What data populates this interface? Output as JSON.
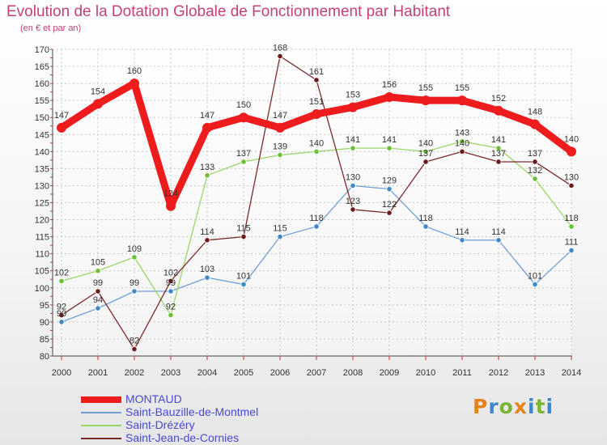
{
  "header": {
    "title": "Evolution de la Dotation Globale de Fonctionnement par Habitant",
    "subtitle": "(en € et par an)"
  },
  "logo": {
    "text": "Proxiti",
    "letters": [
      "P",
      "r",
      "o",
      "x",
      "i",
      "t",
      "i"
    ],
    "colors": [
      "#e8821c",
      "#3f88c8",
      "#7ab631",
      "#e8821c",
      "#3f88c8",
      "#7ab631",
      "#3f88c8"
    ]
  },
  "chart_data": {
    "type": "line",
    "title": "Evolution de la Dotation Globale de Fonctionnement par Habitant",
    "subtitle": "(en € et par an)",
    "xlabel": "",
    "ylabel": "",
    "ylim": [
      80,
      170
    ],
    "yticks": [
      80,
      85,
      90,
      95,
      100,
      105,
      110,
      115,
      120,
      125,
      130,
      135,
      140,
      145,
      150,
      155,
      160,
      165,
      170
    ],
    "categories": [
      "2000",
      "2001",
      "2002",
      "2003",
      "2004",
      "2005",
      "2006",
      "2007",
      "2008",
      "2009",
      "2010",
      "2011",
      "2012",
      "2013",
      "2014"
    ],
    "grid": true,
    "legend_position": "bottom-left",
    "series": [
      {
        "name": "MONTAUD",
        "color": "#ee1c1c",
        "width": 9,
        "marker_radius": 6,
        "values": [
          147,
          154,
          160,
          124,
          147,
          150,
          147,
          151,
          153,
          156,
          155,
          155,
          152,
          148,
          140
        ]
      },
      {
        "name": "Saint-Bauzille-de-Montmel",
        "color": "#6fa0d8",
        "marker_color": "#3f88c8",
        "width": 1.3,
        "marker_radius": 3.2,
        "values": [
          90,
          94,
          99,
          99,
          103,
          101,
          115,
          118,
          130,
          129,
          118,
          114,
          114,
          101,
          111
        ]
      },
      {
        "name": "Saint-Drézéry",
        "color": "#9ad66a",
        "marker_color": "#6cc035",
        "width": 1.3,
        "marker_radius": 3.2,
        "values": [
          102,
          105,
          109,
          92,
          133,
          137,
          139,
          140,
          141,
          141,
          140,
          143,
          141,
          132,
          118
        ]
      },
      {
        "name": "Saint-Jean-de-Cornies",
        "color": "#7a2a2a",
        "marker_color": "#6a1c1c",
        "width": 1.3,
        "marker_radius": 3.2,
        "values": [
          92,
          99,
          82,
          102,
          114,
          115,
          168,
          161,
          123,
          122,
          137,
          140,
          137,
          137,
          130
        ]
      }
    ]
  }
}
